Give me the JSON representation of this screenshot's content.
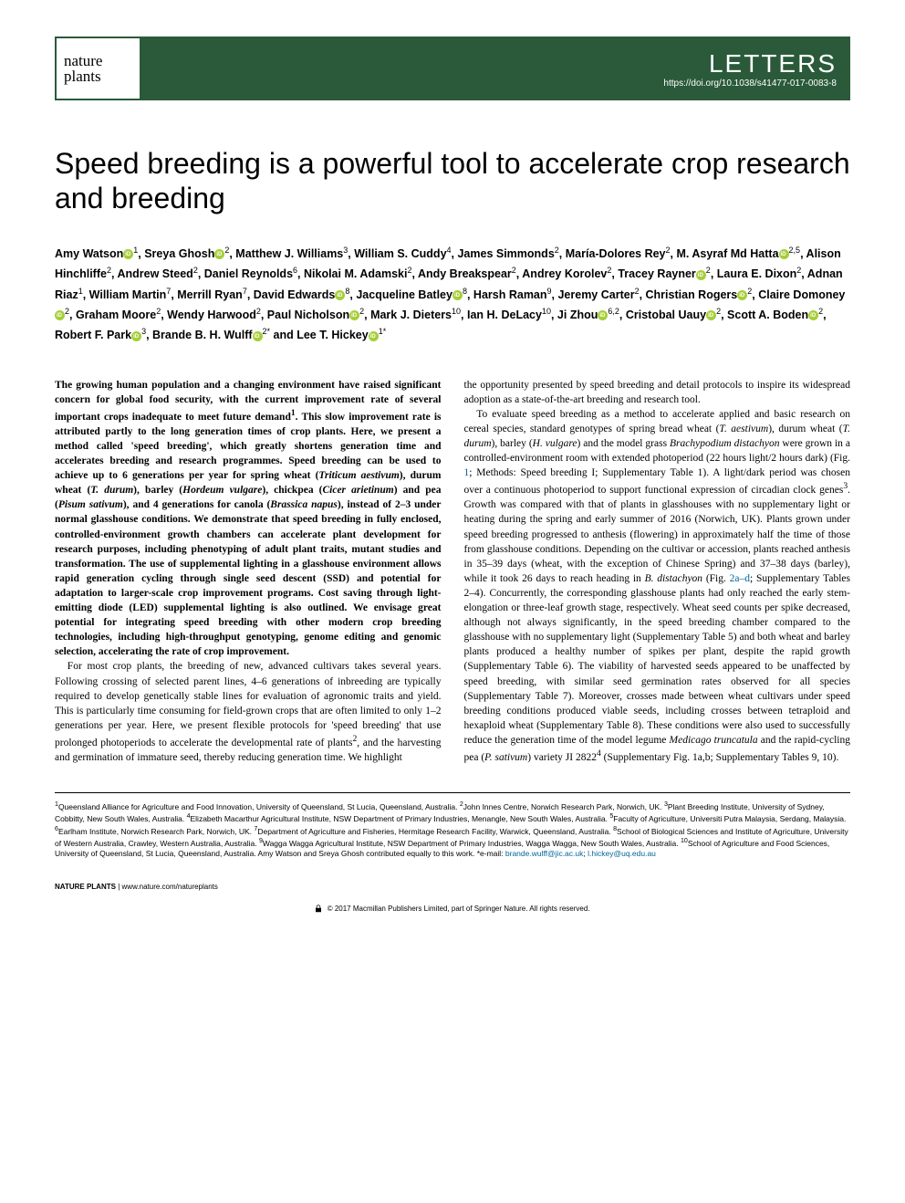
{
  "journal": {
    "logo_line1": "nature",
    "logo_line2": "plants",
    "section_type": "LETTERS",
    "doi": "https://doi.org/10.1038/s41477-017-0083-8",
    "header_bg": "#2a5a3a",
    "header_fg": "#ffffff",
    "logo_border": "#2a5a3a"
  },
  "title": "Speed breeding is a powerful tool to accelerate crop research and breeding",
  "title_fontsize": 32,
  "authors_html": "Amy Watson<span class='orcid'></span><sup>1</sup>, Sreya Ghosh<span class='orcid'></span><sup>2</sup>, Matthew J. Williams<sup>3</sup>, William S. Cuddy<sup>4</sup>, James Simmonds<sup>2</sup>, María-Dolores Rey<sup>2</sup>, M. Asyraf Md Hatta<span class='orcid'></span><sup>2,5</sup>, Alison Hinchliffe<sup>2</sup>, Andrew Steed<sup>2</sup>, Daniel Reynolds<sup>6</sup>, Nikolai M. Adamski<sup>2</sup>, Andy Breakspear<sup>2</sup>, Andrey Korolev<sup>2</sup>, Tracey Rayner<span class='orcid'></span><sup>2</sup>, Laura E. Dixon<sup>2</sup>, Adnan Riaz<sup>1</sup>, William Martin<sup>7</sup>, Merrill Ryan<sup>7</sup>, David Edwards<span class='orcid'></span><sup>8</sup>, Jacqueline Batley<span class='orcid'></span><sup>8</sup>, Harsh Raman<sup>9</sup>, Jeremy Carter<sup>2</sup>, Christian Rogers<span class='orcid'></span><sup>2</sup>, Claire Domoney<span class='orcid'></span><sup>2</sup>, Graham Moore<sup>2</sup>, Wendy Harwood<sup>2</sup>, Paul Nicholson<span class='orcid'></span><sup>2</sup>, Mark J. Dieters<sup>10</sup>, Ian H. DeLacy<sup>10</sup>, Ji Zhou<span class='orcid'></span><sup>6,2</sup>, Cristobal Uauy<span class='orcid'></span><sup>2</sup>, Scott A. Boden<span class='orcid'></span><sup>2</sup>, Robert F. Park<span class='orcid'></span><sup>3</sup>, Brande B. H. Wulff<span class='orcid'></span><sup>2*</sup> and Lee T. Hickey<span class='orcid'></span><sup>1*</sup>",
  "abstract": "The growing human population and a changing environment have raised significant concern for global food security, with the current improvement rate of several important crops inadequate to meet future demand<sup>1</sup>. This slow improvement rate is attributed partly to the long generation times of crop plants. Here, we present a method called 'speed breeding', which greatly shortens generation time and accelerates breeding and research programmes. Speed breeding can be used to achieve up to 6 generations per year for spring wheat (<span class='italic'>Triticum aestivum</span>), durum wheat (<span class='italic'>T. durum</span>), barley (<span class='italic'>Hordeum vulgare</span>), chickpea (<span class='italic'>Cicer arietinum</span>) and pea (<span class='italic'>Pisum sativum</span>), and 4 generations for canola (<span class='italic'>Brassica napus</span>), instead of 2–3 under normal glasshouse conditions. We demonstrate that speed breeding in fully enclosed, controlled-environment growth chambers can accelerate plant development for research purposes, including phenotyping of adult plant traits, mutant studies and transformation. The use of supplemental lighting in a glasshouse environment allows rapid generation cycling through single seed descent (SSD) and potential for adaptation to larger-scale crop improvement programs. Cost saving through light-emitting diode (LED) supplemental lighting is also outlined. We envisage great potential for integrating speed breeding with other modern crop breeding technologies, including high-throughput genotyping, genome editing and genomic selection, accelerating the rate of crop improvement.",
  "body_para1": "For most crop plants, the breeding of new, advanced cultivars takes several years. Following crossing of selected parent lines, 4–6 generations of inbreeding are typically required to develop genetically stable lines for evaluation of agronomic traits and yield. This is particularly time consuming for field-grown crops that are often limited to only 1–2 generations per year. Here, we present flexible protocols for 'speed breeding' that use prolonged photoperiods to accelerate the developmental rate of plants<sup>2</sup>, and the harvesting and germination of immature seed, thereby reducing generation time. We highlight",
  "body_para2": "the opportunity presented by speed breeding and detail protocols to inspire its widespread adoption as a state-of-the-art breeding and research tool.",
  "body_para3": "To evaluate speed breeding as a method to accelerate applied and basic research on cereal species, standard genotypes of spring bread wheat (<span class='italic'>T. aestivum</span>), durum wheat (<span class='italic'>T. durum</span>), barley (<span class='italic'>H. vulgare</span>) and the model grass <span class='italic'>Brachypodium distachyon</span> were grown in a controlled-environment room with extended photoperiod (22 hours light/2 hours dark) (Fig. <span class='ref-link'>1</span>; Methods: Speed breeding I; Supplementary Table 1). A light/dark period was chosen over a continuous photoperiod to support functional expression of circadian clock genes<sup>3</sup>. Growth was compared with that of plants in glasshouses with no supplementary light or heating during the spring and early summer of 2016 (Norwich, UK). Plants grown under speed breeding progressed to anthesis (flowering) in approximately half the time of those from glasshouse conditions. Depending on the cultivar or accession, plants reached anthesis in 35–39 days (wheat, with the exception of Chinese Spring) and 37–38 days (barley), while it took 26 days to reach heading in <span class='italic'>B. distachyon</span> (Fig. <span class='ref-link'>2a–d</span>; Supplementary Tables 2–4). Concurrently, the corresponding glasshouse plants had only reached the early stem-elongation or three-leaf growth stage, respectively. Wheat seed counts per spike decreased, although not always significantly, in the speed breeding chamber compared to the glasshouse with no supplementary light (Supplementary Table 5) and both wheat and barley plants produced a healthy number of spikes per plant, despite the rapid growth (Supplementary Table 6). The viability of harvested seeds appeared to be unaffected by speed breeding, with similar seed germination rates observed for all species (Supplementary Table 7). Moreover, crosses made between wheat cultivars under speed breeding conditions produced viable seeds, including crosses between tetraploid and hexaploid wheat (Supplementary Table 8). These conditions were also used to successfully reduce the generation time of the model legume <span class='italic'>Medicago truncatula</span> and the rapid-cycling pea (<span class='italic'>P. sativum</span>) variety JI 2822<sup>4</sup> (Supplementary Fig. 1a,b; Supplementary Tables 9, 10).",
  "affiliations": "<sup>1</sup>Queensland Alliance for Agriculture and Food Innovation, University of Queensland, St Lucia, Queensland, Australia. <sup>2</sup>John Innes Centre, Norwich Research Park, Norwich, UK. <sup>3</sup>Plant Breeding Institute, University of Sydney, Cobbitty, New South Wales, Australia. <sup>4</sup>Elizabeth Macarthur Agricultural Institute, NSW Department of Primary Industries, Menangle, New South Wales, Australia. <sup>5</sup>Faculty of Agriculture, Universiti Putra Malaysia, Serdang, Malaysia. <sup>6</sup>Earlham Institute, Norwich Research Park, Norwich, UK. <sup>7</sup>Department of Agriculture and Fisheries, Hermitage Research Facility, Warwick, Queensland, Australia. <sup>8</sup>School of Biological Sciences and Institute of Agriculture, University of Western Australia, Crawley, Western Australia, Australia. <sup>9</sup>Wagga Wagga Agricultural Institute, NSW Department of Primary Industries, Wagga Wagga, New South Wales, Australia. <sup>10</sup>School of Agriculture and Food Sciences, University of Queensland, St Lucia, Queensland, Australia. Amy Watson and Sreya Ghosh contributed equally to this work. *e-mail: <span class='ref-link'>brande.wulff@jic.ac.uk</span>; <span class='ref-link'>l.hickey@uq.edu.au</span>",
  "footer": {
    "journal_name": "NATURE PLANTS",
    "url": "www.nature.com/natureplants",
    "copyright": "© 2017 Macmillan Publishers Limited, part of Springer Nature. All rights reserved."
  },
  "colors": {
    "orcid_green": "#a6ce39",
    "link_blue": "#006699",
    "text_black": "#000000",
    "bg_white": "#ffffff"
  },
  "typography": {
    "body_fontsize": 11.5,
    "authors_fontsize": 12.5,
    "affil_fontsize": 8.5,
    "footer_fontsize": 8
  }
}
